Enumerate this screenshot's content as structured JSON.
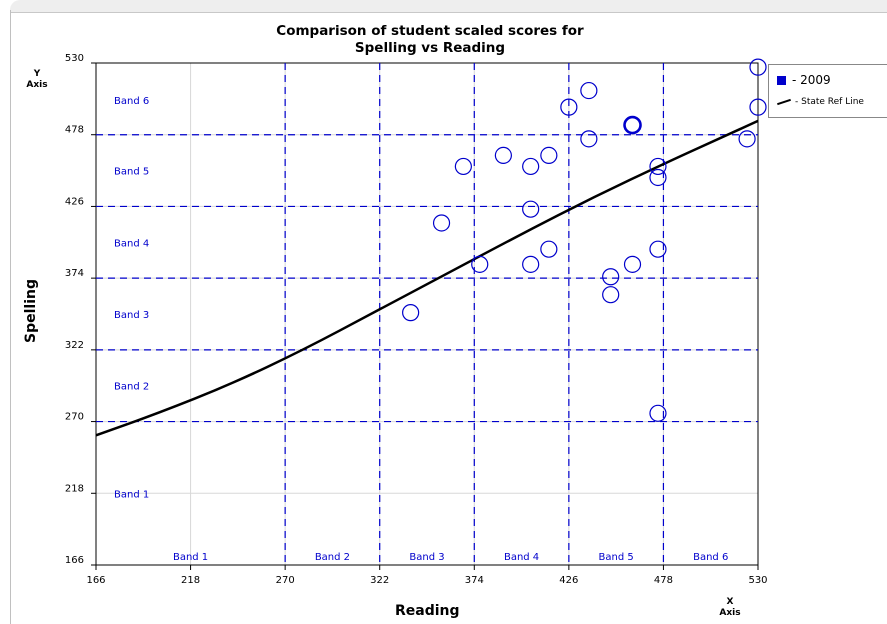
{
  "chart_data": {
    "type": "scatter",
    "title": "Comparison of student scaled scores for",
    "subtitle": "Spelling vs Reading",
    "xlabel": "Reading",
    "ylabel": "Spelling",
    "x_axis_caption": [
      "X",
      "Axis"
    ],
    "y_axis_caption": [
      "Y",
      "Axis"
    ],
    "xlim": [
      166,
      530
    ],
    "ylim": [
      166,
      530
    ],
    "xticks": [
      166,
      218,
      270,
      322,
      374,
      426,
      478,
      530
    ],
    "yticks": [
      166,
      218,
      270,
      322,
      374,
      426,
      478,
      530
    ],
    "x_band_lines": [
      270,
      322,
      374,
      426,
      478
    ],
    "y_band_lines": [
      270,
      322,
      374,
      426,
      478
    ],
    "x_bands": [
      {
        "label": "Band 1",
        "x": 218
      },
      {
        "label": "Band 2",
        "x": 296
      },
      {
        "label": "Band 3",
        "x": 348
      },
      {
        "label": "Band 4",
        "x": 400
      },
      {
        "label": "Band 5",
        "x": 452
      },
      {
        "label": "Band 6",
        "x": 504
      }
    ],
    "y_bands": [
      {
        "label": "Band 6",
        "y": 503
      },
      {
        "label": "Band 5",
        "y": 452
      },
      {
        "label": "Band 4",
        "y": 400
      },
      {
        "label": "Band 3",
        "y": 348
      },
      {
        "label": "Band 2",
        "y": 296
      },
      {
        "label": "Band 1",
        "y": 218
      }
    ],
    "series": [
      {
        "name": "2009",
        "color": "#0000cc",
        "points": [
          {
            "x": 339,
            "y": 349
          },
          {
            "x": 356,
            "y": 414
          },
          {
            "x": 368,
            "y": 455
          },
          {
            "x": 377,
            "y": 384
          },
          {
            "x": 390,
            "y": 463
          },
          {
            "x": 405,
            "y": 424
          },
          {
            "x": 405,
            "y": 384
          },
          {
            "x": 405,
            "y": 455
          },
          {
            "x": 415,
            "y": 395
          },
          {
            "x": 415,
            "y": 463
          },
          {
            "x": 426,
            "y": 498
          },
          {
            "x": 437,
            "y": 510
          },
          {
            "x": 437,
            "y": 475
          },
          {
            "x": 449,
            "y": 375
          },
          {
            "x": 449,
            "y": 362
          },
          {
            "x": 461,
            "y": 384
          },
          {
            "x": 461,
            "y": 485,
            "bold": true
          },
          {
            "x": 475,
            "y": 455
          },
          {
            "x": 475,
            "y": 447
          },
          {
            "x": 475,
            "y": 395
          },
          {
            "x": 475,
            "y": 276
          },
          {
            "x": 524,
            "y": 475
          },
          {
            "x": 530,
            "y": 527
          },
          {
            "x": 530,
            "y": 498
          }
        ]
      },
      {
        "name": "State Ref Line",
        "color": "#000000",
        "type": "line",
        "points": [
          {
            "x": 166,
            "y": 260
          },
          {
            "x": 200,
            "y": 276
          },
          {
            "x": 240,
            "y": 297
          },
          {
            "x": 280,
            "y": 322
          },
          {
            "x": 320,
            "y": 350
          },
          {
            "x": 360,
            "y": 378
          },
          {
            "x": 400,
            "y": 406
          },
          {
            "x": 440,
            "y": 433
          },
          {
            "x": 480,
            "y": 458
          },
          {
            "x": 510,
            "y": 476
          },
          {
            "x": 530,
            "y": 488
          }
        ]
      }
    ],
    "legend": {
      "position": "top-right",
      "entries": [
        "- 2009",
        "- State Ref Line"
      ]
    },
    "colors": {
      "band_lines": "#0000cc",
      "band_labels": "#0000cc",
      "grid": "#d8d8d8",
      "markers": "#0000cc",
      "ref_line": "#000000"
    },
    "grid": true
  }
}
